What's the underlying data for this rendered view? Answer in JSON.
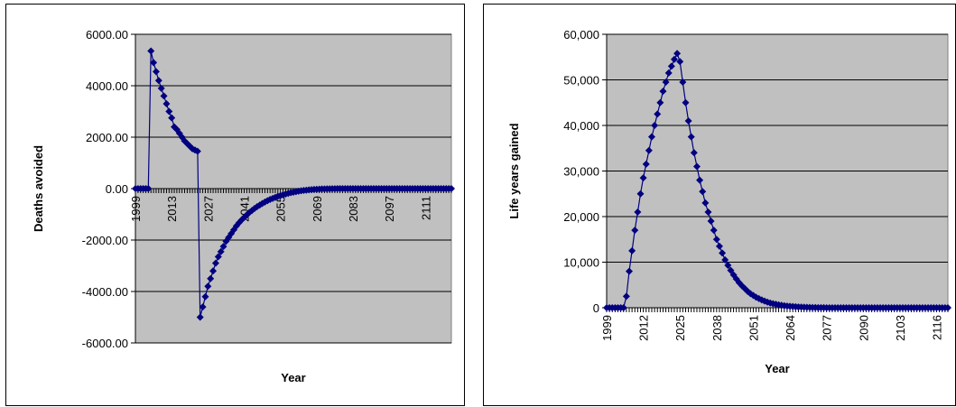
{
  "charts": {
    "left": {
      "type": "line",
      "marker": "diamond",
      "series_color": "#000080",
      "plot_bg": "#c0c0c0",
      "xlabel": "Year",
      "ylabel": "Deaths avoided",
      "x_range": [
        1999,
        2121
      ],
      "ylim": [
        -6000,
        6000
      ],
      "y_ticks": [
        "6000.00",
        "4000.00",
        "2000.00",
        "0.00",
        "-2000.00",
        "-4000.00",
        "-6000.00"
      ],
      "x_ticks": [
        "1999",
        "2013",
        "2027",
        "2041",
        "2055",
        "2069",
        "2083",
        "2097",
        "2111"
      ],
      "grid": "horizontal"
    },
    "right": {
      "type": "line",
      "marker": "diamond",
      "series_color": "#000080",
      "plot_bg": "#c0c0c0",
      "xlabel": "Year",
      "ylabel": "Life years gained",
      "x_range": [
        1999,
        2120
      ],
      "ylim": [
        0,
        60000
      ],
      "y_ticks": [
        "60,000",
        "50,000",
        "40,000",
        "30,000",
        "20,000",
        "10,000",
        "0"
      ],
      "x_ticks": [
        "1999",
        "2012",
        "2025",
        "2038",
        "2051",
        "2064",
        "2077",
        "2090",
        "2103",
        "2116"
      ],
      "grid": "horizontal"
    }
  },
  "chart_data": [
    {
      "type": "line",
      "xlabel": "Year",
      "ylabel": "Deaths avoided",
      "ylim": [
        -6000,
        6000
      ],
      "points": [
        [
          1999,
          0
        ],
        [
          2000,
          0
        ],
        [
          2001,
          0
        ],
        [
          2002,
          0
        ],
        [
          2003,
          0
        ],
        [
          2004,
          0
        ],
        [
          2005,
          5350
        ],
        [
          2006,
          4900
        ],
        [
          2007,
          4550
        ],
        [
          2008,
          4200
        ],
        [
          2009,
          3900
        ],
        [
          2010,
          3600
        ],
        [
          2011,
          3300
        ],
        [
          2012,
          3000
        ],
        [
          2013,
          2750
        ],
        [
          2014,
          2400
        ],
        [
          2015,
          2300
        ],
        [
          2016,
          2150
        ],
        [
          2017,
          2000
        ],
        [
          2018,
          1850
        ],
        [
          2019,
          1750
        ],
        [
          2020,
          1650
        ],
        [
          2021,
          1550
        ],
        [
          2022,
          1500
        ],
        [
          2023,
          1450
        ],
        [
          2024,
          -5000
        ],
        [
          2025,
          -4600
        ],
        [
          2026,
          -4200
        ],
        [
          2027,
          -3800
        ],
        [
          2028,
          -3500
        ],
        [
          2029,
          -3200
        ],
        [
          2030,
          -2900
        ],
        [
          2031,
          -2650
        ],
        [
          2032,
          -2450
        ],
        [
          2033,
          -2250
        ],
        [
          2034,
          -2050
        ],
        [
          2035,
          -1900
        ],
        [
          2036,
          -1750
        ],
        [
          2037,
          -1600
        ],
        [
          2038,
          -1450
        ],
        [
          2039,
          -1330
        ],
        [
          2040,
          -1220
        ],
        [
          2041,
          -1120
        ],
        [
          2042,
          -1020
        ],
        [
          2043,
          -930
        ],
        [
          2044,
          -850
        ],
        [
          2045,
          -770
        ],
        [
          2046,
          -700
        ],
        [
          2047,
          -640
        ],
        [
          2048,
          -580
        ],
        [
          2049,
          -520
        ],
        [
          2050,
          -470
        ],
        [
          2051,
          -420
        ],
        [
          2052,
          -380
        ],
        [
          2053,
          -340
        ],
        [
          2054,
          -300
        ],
        [
          2055,
          -270
        ],
        [
          2056,
          -240
        ],
        [
          2057,
          -210
        ],
        [
          2058,
          -185
        ],
        [
          2059,
          -160
        ],
        [
          2060,
          -140
        ],
        [
          2061,
          -120
        ],
        [
          2062,
          -100
        ],
        [
          2063,
          -85
        ],
        [
          2064,
          -70
        ],
        [
          2065,
          -60
        ],
        [
          2066,
          -50
        ],
        [
          2067,
          -40
        ],
        [
          2068,
          -32
        ],
        [
          2069,
          -25
        ],
        [
          2070,
          -20
        ],
        [
          2071,
          -15
        ],
        [
          2072,
          -12
        ],
        [
          2073,
          -9
        ],
        [
          2074,
          -7
        ],
        [
          2075,
          -5
        ],
        [
          2076,
          -3
        ],
        [
          2077,
          -2
        ],
        [
          2078,
          0
        ],
        [
          2079,
          0
        ],
        [
          2080,
          0
        ],
        [
          2081,
          0
        ],
        [
          2082,
          0
        ],
        [
          2083,
          0
        ],
        [
          2084,
          0
        ],
        [
          2085,
          0
        ],
        [
          2086,
          0
        ],
        [
          2087,
          0
        ],
        [
          2088,
          0
        ],
        [
          2089,
          0
        ],
        [
          2090,
          0
        ],
        [
          2091,
          0
        ],
        [
          2092,
          0
        ],
        [
          2093,
          0
        ],
        [
          2094,
          0
        ],
        [
          2095,
          0
        ],
        [
          2096,
          0
        ],
        [
          2097,
          0
        ],
        [
          2098,
          0
        ],
        [
          2099,
          0
        ],
        [
          2100,
          0
        ],
        [
          2101,
          0
        ],
        [
          2102,
          0
        ],
        [
          2103,
          0
        ],
        [
          2104,
          0
        ],
        [
          2105,
          0
        ],
        [
          2106,
          0
        ],
        [
          2107,
          0
        ],
        [
          2108,
          0
        ],
        [
          2109,
          0
        ],
        [
          2110,
          0
        ],
        [
          2111,
          0
        ],
        [
          2112,
          0
        ],
        [
          2113,
          0
        ],
        [
          2114,
          0
        ],
        [
          2115,
          0
        ],
        [
          2116,
          0
        ],
        [
          2117,
          0
        ],
        [
          2118,
          0
        ],
        [
          2119,
          0
        ],
        [
          2120,
          0
        ],
        [
          2121,
          0
        ]
      ]
    },
    {
      "type": "line",
      "xlabel": "Year",
      "ylabel": "Life years gained",
      "ylim": [
        0,
        60000
      ],
      "points": [
        [
          1999,
          0
        ],
        [
          2000,
          0
        ],
        [
          2001,
          0
        ],
        [
          2002,
          0
        ],
        [
          2003,
          0
        ],
        [
          2004,
          0
        ],
        [
          2005,
          0
        ],
        [
          2006,
          2500
        ],
        [
          2007,
          8000
        ],
        [
          2008,
          12500
        ],
        [
          2009,
          17000
        ],
        [
          2010,
          21000
        ],
        [
          2011,
          25000
        ],
        [
          2012,
          28500
        ],
        [
          2013,
          31500
        ],
        [
          2014,
          34500
        ],
        [
          2015,
          37500
        ],
        [
          2016,
          40000
        ],
        [
          2017,
          42500
        ],
        [
          2018,
          45000
        ],
        [
          2019,
          47500
        ],
        [
          2020,
          49500
        ],
        [
          2021,
          51500
        ],
        [
          2022,
          53000
        ],
        [
          2023,
          54500
        ],
        [
          2024,
          55800
        ],
        [
          2025,
          54000
        ],
        [
          2026,
          49500
        ],
        [
          2027,
          45000
        ],
        [
          2028,
          41000
        ],
        [
          2029,
          37500
        ],
        [
          2030,
          34000
        ],
        [
          2031,
          31000
        ],
        [
          2032,
          28000
        ],
        [
          2033,
          25500
        ],
        [
          2034,
          23000
        ],
        [
          2035,
          21000
        ],
        [
          2036,
          19000
        ],
        [
          2037,
          17000
        ],
        [
          2038,
          15000
        ],
        [
          2039,
          13500
        ],
        [
          2040,
          12000
        ],
        [
          2041,
          10500
        ],
        [
          2042,
          9300
        ],
        [
          2043,
          8200
        ],
        [
          2044,
          7200
        ],
        [
          2045,
          6300
        ],
        [
          2046,
          5500
        ],
        [
          2047,
          4800
        ],
        [
          2048,
          4200
        ],
        [
          2049,
          3600
        ],
        [
          2050,
          3100
        ],
        [
          2051,
          2700
        ],
        [
          2052,
          2300
        ],
        [
          2053,
          2000
        ],
        [
          2054,
          1700
        ],
        [
          2055,
          1450
        ],
        [
          2056,
          1250
        ],
        [
          2057,
          1050
        ],
        [
          2058,
          900
        ],
        [
          2059,
          760
        ],
        [
          2060,
          640
        ],
        [
          2061,
          540
        ],
        [
          2062,
          450
        ],
        [
          2063,
          380
        ],
        [
          2064,
          320
        ],
        [
          2065,
          270
        ],
        [
          2066,
          220
        ],
        [
          2067,
          180
        ],
        [
          2068,
          150
        ],
        [
          2069,
          120
        ],
        [
          2070,
          100
        ],
        [
          2071,
          80
        ],
        [
          2072,
          60
        ],
        [
          2073,
          45
        ],
        [
          2074,
          35
        ],
        [
          2075,
          25
        ],
        [
          2076,
          15
        ],
        [
          2077,
          8
        ],
        [
          2078,
          0
        ],
        [
          2079,
          0
        ],
        [
          2080,
          0
        ],
        [
          2081,
          0
        ],
        [
          2082,
          0
        ],
        [
          2083,
          0
        ],
        [
          2084,
          0
        ],
        [
          2085,
          0
        ],
        [
          2086,
          0
        ],
        [
          2087,
          0
        ],
        [
          2088,
          0
        ],
        [
          2089,
          0
        ],
        [
          2090,
          0
        ],
        [
          2091,
          0
        ],
        [
          2092,
          0
        ],
        [
          2093,
          0
        ],
        [
          2094,
          0
        ],
        [
          2095,
          0
        ],
        [
          2096,
          0
        ],
        [
          2097,
          0
        ],
        [
          2098,
          0
        ],
        [
          2099,
          0
        ],
        [
          2100,
          0
        ],
        [
          2101,
          0
        ],
        [
          2102,
          0
        ],
        [
          2103,
          0
        ],
        [
          2104,
          0
        ],
        [
          2105,
          0
        ],
        [
          2106,
          0
        ],
        [
          2107,
          0
        ],
        [
          2108,
          0
        ],
        [
          2109,
          0
        ],
        [
          2110,
          0
        ],
        [
          2111,
          0
        ],
        [
          2112,
          0
        ],
        [
          2113,
          0
        ],
        [
          2114,
          0
        ],
        [
          2115,
          0
        ],
        [
          2116,
          0
        ],
        [
          2117,
          0
        ],
        [
          2118,
          0
        ],
        [
          2119,
          0
        ],
        [
          2120,
          0
        ]
      ]
    }
  ]
}
